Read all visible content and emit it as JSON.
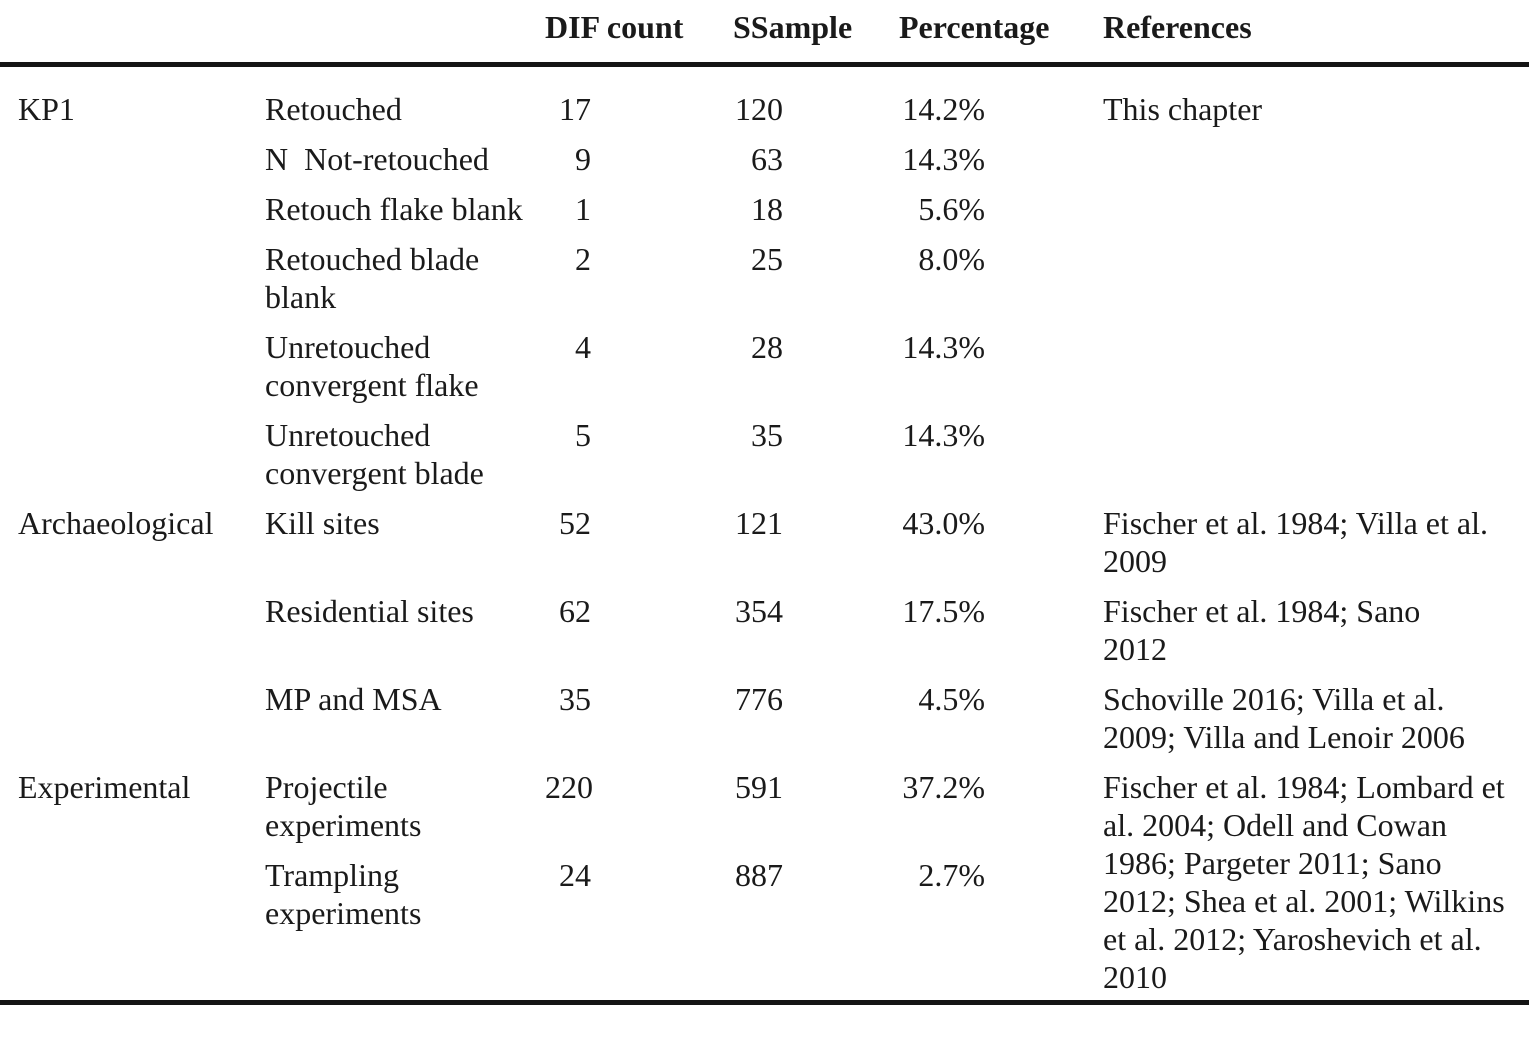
{
  "colors": {
    "text": "#1a1a1a",
    "rule": "#141414",
    "background": "#ffffff"
  },
  "table": {
    "headers": {
      "dif_count": "DIF count",
      "ssample": "SSample",
      "percentage": "Percentage",
      "references": "References"
    },
    "sections": [
      {
        "group": "KP1",
        "rows": [
          {
            "label": "Retouched",
            "dif": "17",
            "sample": "120",
            "pct": "14.2%",
            "ref": "This chapter"
          },
          {
            "label": "N  Not-retouched",
            "dif": "9",
            "sample": "63",
            "pct": "14.3%",
            "ref": ""
          },
          {
            "label": "Retouch flake blank",
            "dif": "1",
            "sample": "18",
            "pct": "5.6%",
            "ref": ""
          },
          {
            "label": "Retouched blade blank",
            "dif": "2",
            "sample": "25",
            "pct": "8.0%",
            "ref": ""
          },
          {
            "label": "Unretouched convergent flake",
            "dif": "4",
            "sample": "28",
            "pct": "14.3%",
            "ref": ""
          },
          {
            "label": "Unretouched convergent blade",
            "dif": "5",
            "sample": "35",
            "pct": "14.3%",
            "ref": ""
          }
        ]
      },
      {
        "group": "Archaeological",
        "rows": [
          {
            "label": "Kill sites",
            "dif": "52",
            "sample": "121",
            "pct": "43.0%",
            "ref": "Fischer et al. 1984; Villa et al. 2009"
          },
          {
            "label": "Residential sites",
            "dif": "62",
            "sample": "354",
            "pct": "17.5%",
            "ref": "Fischer et al. 1984; Sano 2012"
          },
          {
            "label": "MP and MSA",
            "dif": "35",
            "sample": "776",
            "pct": "4.5%",
            "ref": "Schoville 2016; Villa et al. 2009; Villa and Lenoir 2006"
          }
        ]
      },
      {
        "group": "Experimental",
        "rows": [
          {
            "label": "Projectile experiments",
            "dif": "220",
            "sample": "591",
            "pct": "37.2%"
          },
          {
            "label": "Trampling experiments",
            "dif": "24",
            "sample": "887",
            "pct": "2.7%"
          }
        ],
        "shared_ref": "Fischer et al. 1984; Lombard et al. 2004; Odell and Cowan 1986; Pargeter 2011; Sano 2012; Shea et al. 2001; Wilkins et al. 2012; Yaroshevich et al. 2010"
      }
    ]
  }
}
